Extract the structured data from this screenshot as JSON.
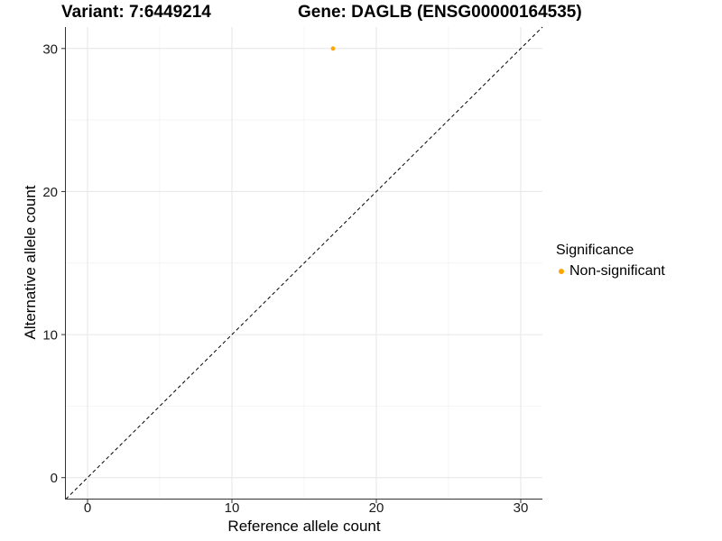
{
  "chart_data": {
    "type": "scatter",
    "titles": {
      "left": "Variant: 7:6449214",
      "right": "Gene: DAGLB (ENSG00000164535)"
    },
    "xlabel": "Reference allele count",
    "ylabel": "Alternative allele count",
    "xlim": [
      -1.5,
      31.5
    ],
    "ylim": [
      -1.5,
      31.5
    ],
    "x_ticks": [
      0,
      10,
      20,
      30
    ],
    "y_ticks": [
      0,
      10,
      20,
      30
    ],
    "x_minor_ticks": [
      5,
      15,
      25
    ],
    "y_minor_ticks": [
      5,
      15,
      25
    ],
    "grid": "major+minor",
    "reference_line": {
      "slope": 1,
      "intercept": 0,
      "style": "dashed",
      "color": "#000000"
    },
    "series": [
      {
        "name": "Non-significant",
        "color": "#FFA500",
        "points": [
          [
            17,
            30
          ]
        ]
      }
    ],
    "legend": {
      "title": "Significance",
      "position": "right",
      "items": [
        {
          "label": "Non-significant",
          "color": "#FFA500"
        }
      ]
    }
  },
  "colors": {
    "background": "#FFFFFF",
    "grid_major": "#E6E6E6",
    "grid_minor": "#F4F4F4",
    "axis_line": "#333333",
    "tick": "#333333",
    "tick_label": "#1A1A1A",
    "point": "#FFA500"
  }
}
